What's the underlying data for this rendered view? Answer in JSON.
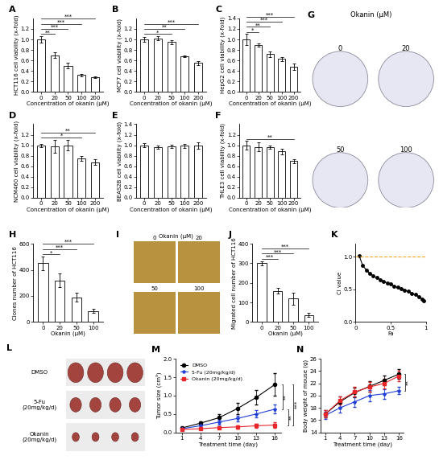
{
  "chart_data": [
    {
      "panel": "A",
      "type": "bar",
      "categories": [
        "0",
        "20",
        "50",
        "100",
        "200"
      ],
      "values": [
        1.0,
        0.7,
        0.5,
        0.32,
        0.28
      ],
      "errors": [
        0.06,
        0.05,
        0.05,
        0.02,
        0.02
      ],
      "color": "#ffffff",
      "x_label": "Concentration of okanin (μM)",
      "y_label": "HCT116 cell viability (x-fold)",
      "ylim": [
        0,
        1.4
      ],
      "yticks": [
        {
          "value": 0.0,
          "label": "0.0"
        },
        {
          "value": 0.2,
          "label": "0.2"
        },
        {
          "value": 0.4,
          "label": "0.4"
        },
        {
          "value": 0.6,
          "label": "0.6"
        },
        {
          "value": 0.8,
          "label": "0.8"
        },
        {
          "value": 1.0,
          "label": "1.0"
        },
        {
          "value": 1.2,
          "label": "1.2"
        }
      ],
      "significance": [
        {
          "between": [
            "0",
            "20"
          ],
          "label": "**"
        },
        {
          "between": [
            "0",
            "50"
          ],
          "label": "***"
        },
        {
          "between": [
            "0",
            "100"
          ],
          "label": "***"
        },
        {
          "between": [
            "0",
            "200"
          ],
          "label": "***"
        }
      ]
    },
    {
      "panel": "B",
      "type": "bar",
      "categories": [
        "0",
        "20",
        "50",
        "100",
        "200"
      ],
      "values": [
        1.0,
        1.02,
        0.95,
        0.68,
        0.55
      ],
      "errors": [
        0.04,
        0.04,
        0.04,
        0.02,
        0.04
      ],
      "color": "#ffffff",
      "x_label": "Concentration of okanin (μM)",
      "y_label": "MCF7 cell viability (x-fold)",
      "ylim": [
        0,
        1.4
      ],
      "yticks": [
        {
          "value": 0.0,
          "label": "0.0"
        },
        {
          "value": 0.2,
          "label": "0.2"
        },
        {
          "value": 0.4,
          "label": "0.4"
        },
        {
          "value": 0.6,
          "label": "0.6"
        },
        {
          "value": 0.8,
          "label": "0.8"
        },
        {
          "value": 1.0,
          "label": "1.0"
        },
        {
          "value": 1.2,
          "label": "1.2"
        }
      ],
      "significance": [
        {
          "between": [
            "0",
            "50"
          ],
          "label": "*"
        },
        {
          "between": [
            "0",
            "100"
          ],
          "label": "**"
        },
        {
          "between": [
            "0",
            "200"
          ],
          "label": "***"
        }
      ]
    },
    {
      "panel": "C",
      "type": "bar",
      "categories": [
        "0",
        "20",
        "50",
        "100",
        "200"
      ],
      "values": [
        1.0,
        0.9,
        0.72,
        0.63,
        0.48
      ],
      "errors": [
        0.1,
        0.03,
        0.05,
        0.04,
        0.06
      ],
      "color": "#ffffff",
      "x_label": "Concentration of okanin (μM)",
      "y_label": "HepG2 cell viability (x-fold)",
      "ylim": [
        0,
        1.4
      ],
      "yticks": [
        {
          "value": 0.0,
          "label": "0.0"
        },
        {
          "value": 0.2,
          "label": "0.2"
        },
        {
          "value": 0.4,
          "label": "0.4"
        },
        {
          "value": 0.6,
          "label": "0.6"
        },
        {
          "value": 0.8,
          "label": "0.8"
        },
        {
          "value": 1.0,
          "label": "1.0"
        },
        {
          "value": 1.2,
          "label": "1.2"
        },
        {
          "value": 1.4,
          "label": "1.4"
        }
      ],
      "significance": [
        {
          "between": [
            "0",
            "20"
          ],
          "label": "*"
        },
        {
          "between": [
            "0",
            "50"
          ],
          "label": "**"
        },
        {
          "between": [
            "0",
            "100"
          ],
          "label": "***"
        },
        {
          "between": [
            "0",
            "200"
          ],
          "label": "***"
        }
      ]
    },
    {
      "panel": "D",
      "type": "bar",
      "categories": [
        "0",
        "20",
        "50",
        "100",
        "200"
      ],
      "values": [
        1.0,
        0.98,
        1.0,
        0.75,
        0.68
      ],
      "errors": [
        0.03,
        0.12,
        0.1,
        0.05,
        0.06
      ],
      "color": "#ffffff",
      "x_label": "Concentration of okanin (μM)",
      "y_label": "NCM460 cell viability (x-fold)",
      "ylim": [
        0,
        1.4
      ],
      "yticks": [
        {
          "value": 0.0,
          "label": "0.0"
        },
        {
          "value": 0.2,
          "label": "0.2"
        },
        {
          "value": 0.4,
          "label": "0.4"
        },
        {
          "value": 0.6,
          "label": "0.6"
        },
        {
          "value": 0.8,
          "label": "0.8"
        },
        {
          "value": 1.0,
          "label": "1.0"
        },
        {
          "value": 1.2,
          "label": "1.2"
        }
      ],
      "significance": [
        {
          "between": [
            "0",
            "100"
          ],
          "label": "*"
        },
        {
          "between": [
            "0",
            "200"
          ],
          "label": "**"
        }
      ]
    },
    {
      "panel": "E",
      "type": "bar",
      "categories": [
        "0",
        "20",
        "50",
        "100",
        "200"
      ],
      "values": [
        1.0,
        0.96,
        0.98,
        0.99,
        1.0
      ],
      "errors": [
        0.04,
        0.03,
        0.03,
        0.04,
        0.06
      ],
      "color": "#ffffff",
      "x_label": "Concentration of okanin (μM)",
      "y_label": "BEAS2B cell viability (x-fold)",
      "ylim": [
        0,
        1.4
      ],
      "yticks": [
        {
          "value": 0.0,
          "label": "0.0"
        },
        {
          "value": 0.2,
          "label": "0.2"
        },
        {
          "value": 0.4,
          "label": "0.4"
        },
        {
          "value": 0.6,
          "label": "0.6"
        },
        {
          "value": 0.8,
          "label": "0.8"
        },
        {
          "value": 1.0,
          "label": "1.0"
        },
        {
          "value": 1.2,
          "label": "1.2"
        },
        {
          "value": 1.4,
          "label": "1.4"
        }
      ],
      "significance": []
    },
    {
      "panel": "F",
      "type": "bar",
      "categories": [
        "0",
        "20",
        "50",
        "100",
        "200"
      ],
      "values": [
        1.0,
        0.97,
        0.97,
        0.88,
        0.7
      ],
      "errors": [
        0.08,
        0.08,
        0.03,
        0.06,
        0.04
      ],
      "color": "#ffffff",
      "x_label": "Concentration of okanin (μM)",
      "y_label": "THLE3 cell viability (x-fold)",
      "ylim": [
        0,
        1.4
      ],
      "yticks": [
        {
          "value": 0.0,
          "label": "0.0"
        },
        {
          "value": 0.2,
          "label": "0.2"
        },
        {
          "value": 0.4,
          "label": "0.4"
        },
        {
          "value": 0.6,
          "label": "0.6"
        },
        {
          "value": 0.8,
          "label": "0.8"
        },
        {
          "value": 1.0,
          "label": "1.0"
        },
        {
          "value": 1.2,
          "label": "1.2"
        }
      ],
      "significance": [
        {
          "between": [
            "0",
            "200"
          ],
          "label": "**"
        }
      ]
    },
    {
      "panel": "H",
      "type": "bar",
      "categories": [
        "0",
        "20",
        "50",
        "100"
      ],
      "values": [
        450,
        320,
        190,
        85
      ],
      "errors": [
        50,
        50,
        35,
        15
      ],
      "color": "#ffffff",
      "x_label": "Okanin (μM)",
      "y_label": "Clones number of HCT116",
      "ylim": [
        0,
        600
      ],
      "yticks": [
        0,
        200,
        400,
        600
      ],
      "significance": [
        {
          "between": [
            "0",
            "20"
          ],
          "label": "*"
        },
        {
          "between": [
            "0",
            "50"
          ],
          "label": "***"
        },
        {
          "between": [
            "0",
            "100"
          ],
          "label": "***"
        }
      ]
    },
    {
      "panel": "J",
      "type": "bar",
      "categories": [
        "0",
        "20",
        "50",
        "100"
      ],
      "values": [
        300,
        160,
        120,
        35
      ],
      "errors": [
        10,
        15,
        30,
        10
      ],
      "color": "#ffffff",
      "x_label": "Okanin (μM)",
      "y_label": "Migrated cell number of HCT116",
      "ylim": [
        0,
        400
      ],
      "yticks": [
        0,
        100,
        200,
        300,
        400
      ],
      "significance": [
        {
          "between": [
            "0",
            "20"
          ],
          "label": "***"
        },
        {
          "between": [
            "0",
            "50"
          ],
          "label": "***"
        },
        {
          "between": [
            "0",
            "100"
          ],
          "label": "***"
        }
      ]
    },
    {
      "panel": "K",
      "type": "line",
      "x_label": "Fa",
      "y_label": "CI value",
      "x": [
        0.05,
        0.1,
        0.15,
        0.2,
        0.25,
        0.3,
        0.35,
        0.4,
        0.45,
        0.5,
        0.55,
        0.6,
        0.65,
        0.7,
        0.75,
        0.8,
        0.85,
        0.9,
        0.95,
        0.97
      ],
      "values": [
        1.02,
        0.87,
        0.8,
        0.75,
        0.71,
        0.68,
        0.65,
        0.62,
        0.6,
        0.58,
        0.55,
        0.53,
        0.51,
        0.49,
        0.47,
        0.44,
        0.42,
        0.39,
        0.35,
        0.33
      ],
      "color": "#000000",
      "marker": "circle",
      "reference": {
        "value": 1,
        "color": "#f5a623",
        "line_style": "dashed"
      },
      "xlim": [
        0,
        1.0
      ],
      "xticks": [
        0,
        {
          "value": 0.5,
          "label": "0.5"
        },
        {
          "value": 1.0,
          "label": "1"
        }
      ],
      "ylim": [
        0,
        1.2
      ],
      "yticks": [
        {
          "value": 0.0,
          "label": "0.0"
        },
        {
          "value": 0.5,
          "label": "0.5"
        },
        {
          "value": 1.0,
          "label": "1.0"
        }
      ]
    },
    {
      "panel": "M",
      "type": "line",
      "x_label": "Treatment time (day)",
      "y_label": "Tumor size (cm³)",
      "x": [
        1,
        4,
        7,
        10,
        13,
        16
      ],
      "legend": "upper left",
      "series": [
        {
          "name": "DMSO",
          "color": "#000000",
          "marker": "circle",
          "values": [
            0.12,
            0.25,
            0.4,
            0.65,
            0.95,
            1.3
          ],
          "errors": [
            0.03,
            0.05,
            0.1,
            0.15,
            0.2,
            0.3
          ]
        },
        {
          "name": "5-Fu (20mg/kg/d)",
          "color": "#1f3fd6",
          "marker": "star",
          "values": [
            0.1,
            0.18,
            0.28,
            0.38,
            0.5,
            0.63
          ],
          "errors": [
            0.02,
            0.04,
            0.06,
            0.08,
            0.1,
            0.12
          ]
        },
        {
          "name": "Okanin (20mg/kg/d)",
          "color": "#e8262a",
          "marker": "square",
          "values": [
            0.08,
            0.1,
            0.13,
            0.15,
            0.18,
            0.2
          ],
          "errors": [
            0.02,
            0.02,
            0.03,
            0.04,
            0.05,
            0.07
          ]
        }
      ],
      "xlim": [
        0,
        17
      ],
      "xticks": [
        1,
        4,
        7,
        10,
        13,
        16
      ],
      "ylim": [
        0,
        2.0
      ],
      "yticks": [
        {
          "value": 0.0,
          "label": "0.0"
        },
        {
          "value": 0.5,
          "label": "0.5"
        },
        {
          "value": 1.0,
          "label": "1.0"
        },
        {
          "value": 1.5,
          "label": "1.5"
        },
        {
          "value": 2.0,
          "label": "2.0"
        }
      ],
      "significance": [
        {
          "between": [
            "DMSO",
            "5-Fu (20mg/kg/d)"
          ],
          "label": "**"
        },
        {
          "between": [
            "5-Fu (20mg/kg/d)",
            "Okanin (20mg/kg/d)"
          ],
          "label": "**"
        },
        {
          "between": [
            "DMSO",
            "Okanin (20mg/kg/d)"
          ],
          "label": "***"
        }
      ]
    },
    {
      "panel": "N",
      "type": "line",
      "x_label": "Treatment time (day)",
      "y_label": "Body weight of mouse (g)",
      "x": [
        1,
        4,
        7,
        10,
        13,
        16
      ],
      "series": [
        {
          "name": "DMSO",
          "color": "#000000",
          "marker": "circle",
          "values": [
            17.0,
            19.0,
            20.5,
            21.5,
            22.5,
            23.5
          ],
          "errors": [
            0.6,
            0.8,
            0.8,
            0.8,
            0.8,
            0.8
          ]
        },
        {
          "name": "5-Fu (20mg/kg/d)",
          "color": "#1f3fd6",
          "marker": "star",
          "values": [
            16.8,
            18.0,
            19.0,
            20.0,
            20.3,
            20.8
          ],
          "errors": [
            0.6,
            0.8,
            0.8,
            0.9,
            0.8,
            0.6
          ]
        },
        {
          "name": "Okanin (20mg/kg/d)",
          "color": "#e8262a",
          "marker": "square",
          "values": [
            17.0,
            19.2,
            20.6,
            21.4,
            22.0,
            23.2
          ],
          "errors": [
            0.6,
            0.7,
            0.8,
            0.8,
            0.8,
            0.8
          ]
        }
      ],
      "xlim": [
        0,
        17
      ],
      "xticks": [
        1,
        4,
        7,
        10,
        13,
        16
      ],
      "ylim": [
        14,
        26
      ],
      "yticks": [
        14,
        16,
        18,
        20,
        22,
        24,
        26
      ],
      "significance": [
        {
          "between": [
            "DMSO",
            "5-Fu (20mg/kg/d)"
          ],
          "label": "**"
        }
      ]
    }
  ],
  "image_panels": [
    {
      "panel": "G",
      "kind": "colony plates",
      "title": "Okanin (μM)",
      "labels": [
        "0",
        "20",
        "50",
        "100"
      ]
    },
    {
      "panel": "I",
      "kind": "migration images",
      "title": "Okanin (μM)",
      "labels": [
        "0",
        "20",
        "50",
        "100"
      ]
    },
    {
      "panel": "L",
      "kind": "tumor photos",
      "labels": [
        "DMSO",
        "5-Fu\n(20mg/kg/d)",
        "Okanin\n(20mg/kg/d)"
      ]
    }
  ]
}
